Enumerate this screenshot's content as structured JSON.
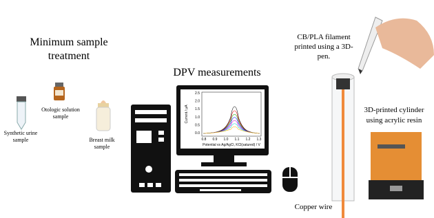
{
  "sample_treatment": {
    "title_lines": [
      "Minimum sample",
      "treatment"
    ],
    "samples": [
      {
        "label_lines": [
          "Otologic solution",
          "sample"
        ]
      },
      {
        "label_lines": [
          "Synthetic urine",
          "sample"
        ]
      },
      {
        "label_lines": [
          "Breast milk",
          "sample"
        ]
      }
    ]
  },
  "measurement": {
    "title": "DPV measurements",
    "inset": {
      "y_label": "Current / µA",
      "y_ticks": [
        "2.5",
        "2.0",
        "1.5",
        "1.0",
        "0.5",
        "0.0"
      ],
      "x_ticks": [
        "0.8",
        "0.9",
        "1.0",
        "1.1",
        "1.2",
        "1.3"
      ],
      "x_label": "Potential vs Ag/AgCl, KCl(satured) / V"
    }
  },
  "electrode": {
    "pen_label_lines": [
      "CB/PLA filament",
      "printed using a 3D-",
      "pen."
    ],
    "cylinder_label_lines": [
      "3D-printed cylinder",
      "using acrylic resin"
    ],
    "wire_label": "Copper wire"
  }
}
